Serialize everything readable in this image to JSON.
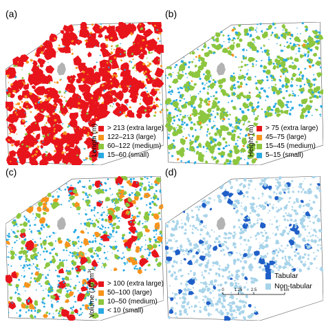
{
  "colors": {
    "red": "#e8141c",
    "orange": "#f7941d",
    "green": "#8dc63f",
    "cyan": "#29aae1",
    "gray": "#b3b3b3",
    "tabular": "#1f5fc8",
    "nontabular": "#a8d4ea"
  },
  "panels": [
    {
      "id": "a",
      "label": "(a)",
      "scheme": "length"
    },
    {
      "id": "b",
      "label": "(b)",
      "scheme": "height"
    },
    {
      "id": "c",
      "label": "(c)",
      "scheme": "volume"
    },
    {
      "id": "d",
      "label": "(d)",
      "scheme": "type"
    }
  ],
  "legends": {
    "length": {
      "title": "Length (m)",
      "items": [
        {
          "label": "> 213 (extra large)",
          "color": "#e8141c"
        },
        {
          "label": "122–213 (large)",
          "color": "#f7941d"
        },
        {
          "label": "60–122 (medium)",
          "color": "#8dc63f"
        },
        {
          "label": "15–60 (small)",
          "color": "#29aae1"
        }
      ]
    },
    "height": {
      "title": "Height (m)",
      "items": [
        {
          "label": "> 75 (extra large)",
          "color": "#e8141c"
        },
        {
          "label": "45–75 (large)",
          "color": "#f7941d"
        },
        {
          "label": "15–45 (medium)",
          "color": "#8dc63f"
        },
        {
          "label": "5–15 (small)",
          "color": "#29aae1"
        }
      ]
    },
    "volume": {
      "title_prefix": "Volume (10",
      "title_sup": "6",
      "title_mid": " m",
      "title_sup2": "3",
      "title_suffix": ")",
      "items": [
        {
          "label": "> 100 (extra large)",
          "color": "#e8141c"
        },
        {
          "label": "50–100 (large)",
          "color": "#f7941d"
        },
        {
          "label": "10–50 (medium)",
          "color": "#8dc63f"
        },
        {
          "label": "< 10 (small)",
          "color": "#29aae1"
        }
      ]
    },
    "type": {
      "items": [
        {
          "label": "Tabular",
          "color": "#1f5fc8"
        },
        {
          "label": "Non-tabular",
          "color": "#a8d4ea"
        }
      ]
    }
  },
  "scalebar": {
    "ticks": [
      "0",
      "1.25",
      "2.5",
      "5 km"
    ]
  }
}
